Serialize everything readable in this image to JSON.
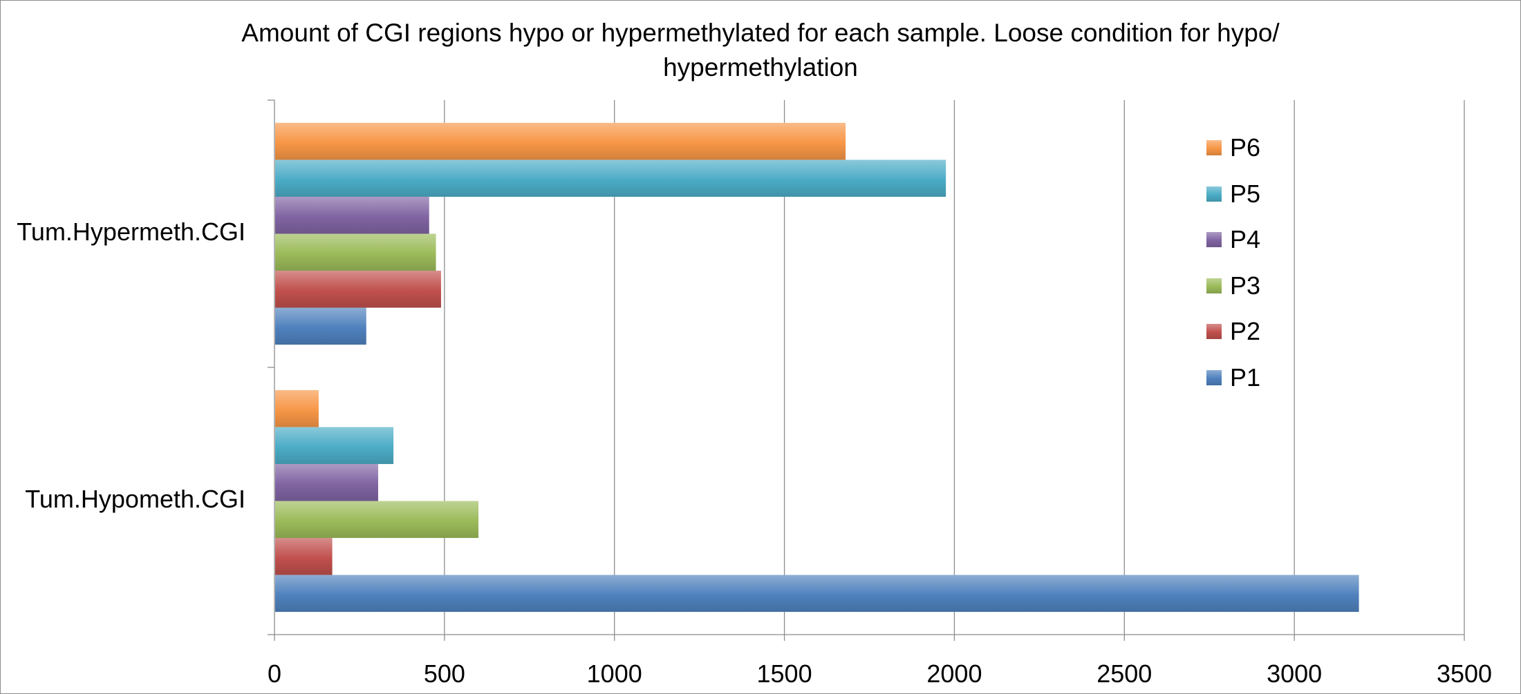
{
  "chart_data": {
    "type": "bar",
    "orientation": "horizontal",
    "title_lines": [
      "Amount of CGI regions hypo or hypermethylated for each sample. Loose condition for hypo/",
      "hypermethylation"
    ],
    "categories": [
      "Tum.Hypermeth.CGI",
      "Tum.Hypometh.CGI"
    ],
    "series": [
      {
        "name": "P1",
        "color": "#4f81bd",
        "values": [
          270,
          3190
        ]
      },
      {
        "name": "P2",
        "color": "#c0504d",
        "values": [
          490,
          170
        ]
      },
      {
        "name": "P3",
        "color": "#9bbb59",
        "values": [
          475,
          600
        ]
      },
      {
        "name": "P4",
        "color": "#8064a2",
        "values": [
          455,
          305
        ]
      },
      {
        "name": "P5",
        "color": "#4bacc6",
        "values": [
          1975,
          350
        ]
      },
      {
        "name": "P6",
        "color": "#f79646",
        "values": [
          1680,
          130
        ]
      }
    ],
    "xlim": [
      0,
      3500
    ],
    "xticks": [
      "0",
      "500",
      "1000",
      "1500",
      "2000",
      "2500",
      "3000",
      "3500"
    ],
    "xlabel": "",
    "ylabel": "",
    "grid": "vertical major gridlines",
    "legend_position": "top-right"
  }
}
